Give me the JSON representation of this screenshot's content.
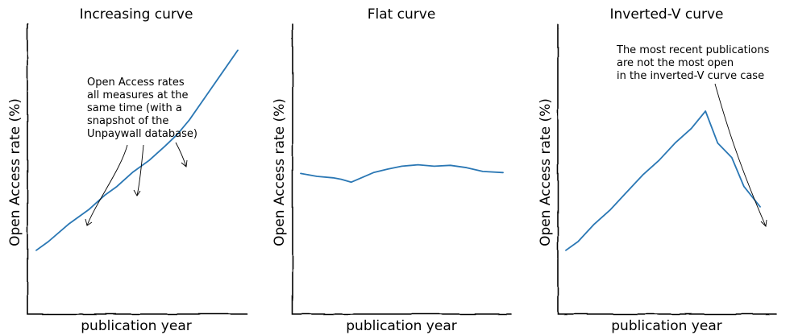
{
  "colors": {
    "series": "#2a77b4",
    "axis": "#000000"
  },
  "chart_data": [
    {
      "type": "line",
      "title": "Increasing curve",
      "xlabel": "publication year",
      "ylabel": "Open Access rate (%)",
      "xlim": [
        0,
        10
      ],
      "ylim": [
        0,
        100
      ],
      "x": [
        0,
        0.6,
        1.6,
        2.6,
        3.4,
        4.0,
        4.8,
        5.6,
        6.4,
        7.0,
        7.6,
        8.4,
        9.2,
        10
      ],
      "series": [
        {
          "values": [
            22,
            25,
            31,
            36,
            41,
            44,
            49,
            53,
            58,
            62,
            67,
            75,
            83,
            91
          ]
        }
      ],
      "annotation": {
        "text": [
          "Open Access rates",
          "all measures at the",
          "same time (with a",
          "snapshot of the",
          "Unpaywall database)"
        ],
        "targets": [
          [
            2.5,
            35
          ],
          [
            5.0,
            50
          ],
          [
            7.6,
            67
          ]
        ]
      }
    },
    {
      "type": "line",
      "title": "Flat curve",
      "xlabel": "publication year",
      "ylabel": "Open Access rate (%)",
      "xlim": [
        0,
        10
      ],
      "ylim": [
        0,
        100
      ],
      "x": [
        0,
        0.8,
        1.6,
        2.0,
        2.5,
        3.0,
        3.6,
        4.3,
        5.0,
        5.8,
        6.6,
        7.4,
        8.2,
        9.0,
        10
      ],
      "series": [
        {
          "values": [
            48.5,
            47.5,
            47,
            46.5,
            45.5,
            47,
            48.8,
            50,
            51,
            51.5,
            51,
            51.3,
            50.5,
            49.2,
            48.8
          ]
        }
      ]
    },
    {
      "type": "line",
      "title": "Inverted-V curve",
      "xlabel": "publication year",
      "ylabel": "Open Access rate (%)",
      "xlim": [
        0,
        10
      ],
      "ylim": [
        0,
        100
      ],
      "x": [
        0,
        0.6,
        1.4,
        2.2,
        3.0,
        3.8,
        4.6,
        5.4,
        6.2,
        6.9,
        7.5,
        8.2,
        8.8,
        9.6
      ],
      "series": [
        {
          "values": [
            22,
            25,
            31,
            36,
            42,
            48,
            53,
            59,
            64,
            70,
            59,
            54,
            44,
            37
          ]
        }
      ],
      "annotation": {
        "text": [
          "The most recent publications",
          "are not the most open",
          "in the inverted-V curve case"
        ],
        "targets": [
          [
            9.5,
            37
          ]
        ]
      }
    }
  ]
}
